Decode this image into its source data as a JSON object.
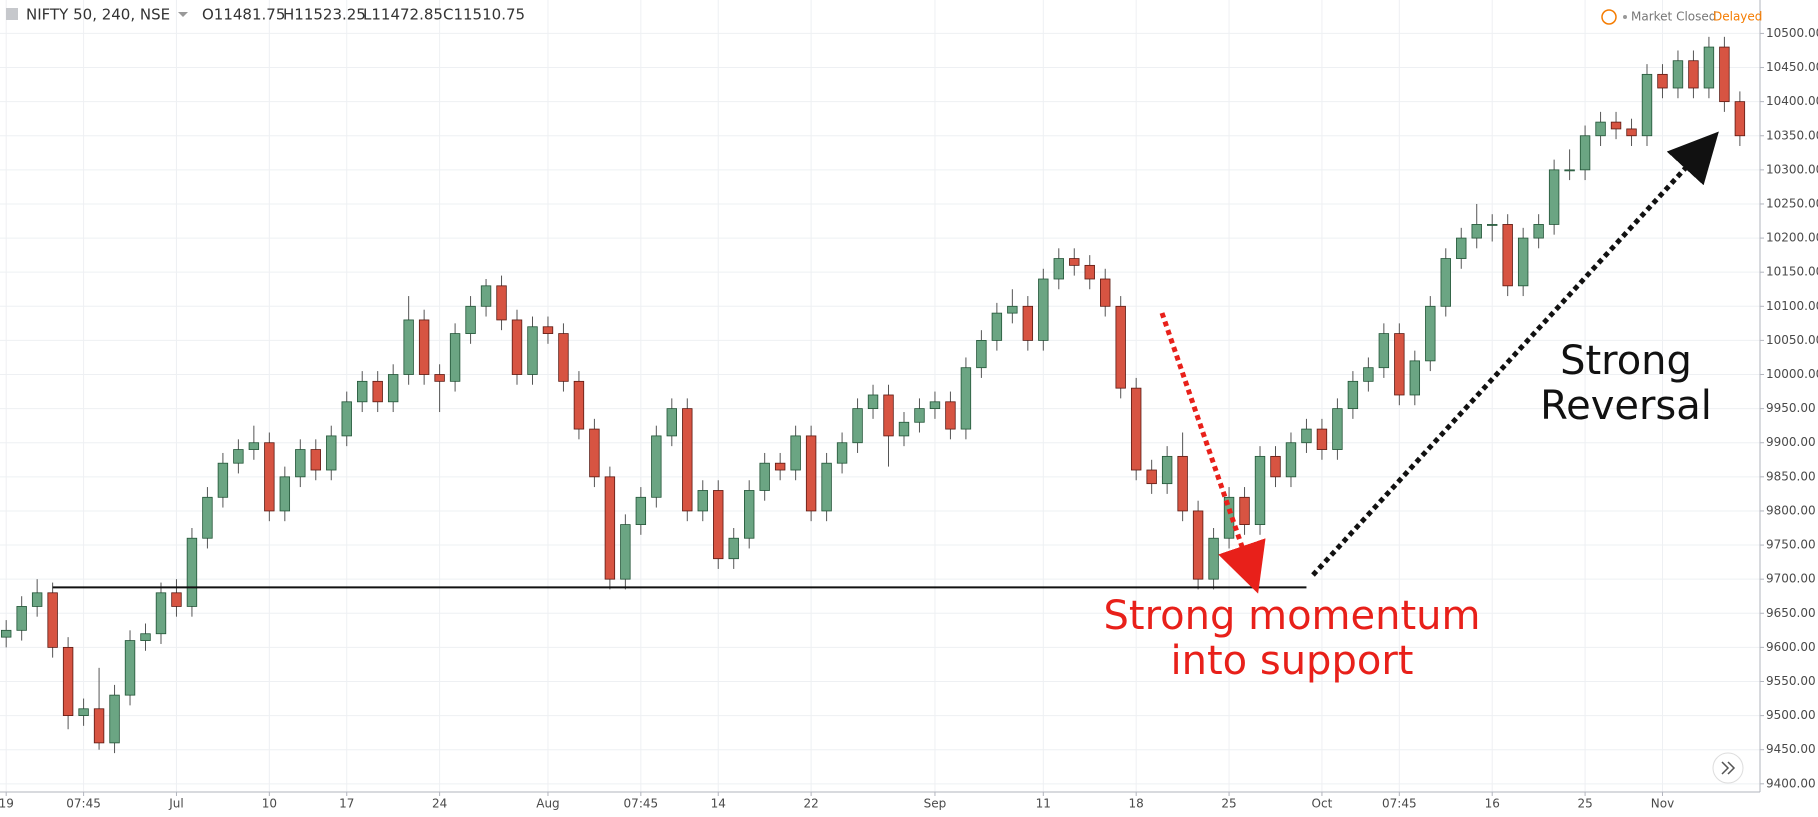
{
  "header": {
    "symbol": "NIFTY 50, 240, NSE",
    "ohlc": [
      "O11481.75",
      "H11523.25",
      "L11472.85",
      "C11510.75"
    ],
    "status": "Market Closed",
    "feed": "Delayed"
  },
  "chart_data": {
    "type": "candlestick",
    "open": [
      9615,
      9625,
      9660,
      9680,
      9600,
      9500,
      9510,
      9460,
      9530,
      9610,
      9620,
      9680,
      9660,
      9760,
      9820,
      9870,
      9890,
      9900,
      9800,
      9850,
      9890,
      9860,
      9910,
      9960,
      9990,
      9960,
      10000,
      10080,
      10000,
      9990,
      10060,
      10100,
      10130,
      10080,
      10000,
      10070,
      10060,
      9990,
      9920,
      9850,
      9700,
      9780,
      9820,
      9910,
      9950,
      9800,
      9830,
      9730,
      9760,
      9830,
      9870,
      9860,
      9910,
      9800,
      9870,
      9900,
      9950,
      9970,
      9910,
      9930,
      9950,
      9960,
      9920,
      10010,
      10050,
      10090,
      10100,
      10050,
      10140,
      10170,
      10160,
      10140,
      10100,
      9980,
      9860,
      9840,
      9880,
      9800,
      9700,
      9760,
      9820,
      9780,
      9880,
      9850,
      9900,
      9920,
      9890,
      9950,
      9990,
      10010,
      10060,
      9970,
      10020,
      10100,
      10170,
      10200,
      10220,
      10220,
      10130,
      10200,
      10220,
      10300,
      10300,
      10350,
      10370,
      10360,
      10350,
      10440,
      10420,
      10460,
      10420,
      10480,
      10400
    ],
    "high": [
      9640,
      9675,
      9700,
      9695,
      9615,
      9525,
      9570,
      9545,
      9625,
      9635,
      9695,
      9700,
      9775,
      9835,
      9885,
      9905,
      9925,
      9915,
      9865,
      9905,
      9905,
      9925,
      9975,
      10005,
      10005,
      10015,
      10115,
      10095,
      10015,
      10075,
      10115,
      10140,
      10145,
      10095,
      10085,
      10085,
      10075,
      10005,
      9935,
      9865,
      9795,
      9835,
      9925,
      9965,
      9965,
      9845,
      9845,
      9775,
      9845,
      9885,
      9885,
      9925,
      9925,
      9885,
      9915,
      9965,
      9985,
      9985,
      9945,
      9965,
      9975,
      9975,
      10025,
      10065,
      10105,
      10125,
      10115,
      10155,
      10185,
      10185,
      10175,
      10155,
      10115,
      9995,
      9875,
      9895,
      9915,
      9815,
      9775,
      9835,
      9835,
      9895,
      9895,
      9915,
      9935,
      9935,
      9965,
      10005,
      10025,
      10075,
      10075,
      10035,
      10115,
      10185,
      10215,
      10250,
      10235,
      10235,
      10215,
      10235,
      10315,
      10330,
      10365,
      10385,
      10385,
      10375,
      10455,
      10455,
      10475,
      10475,
      10495,
      10495,
      10415
    ],
    "low": [
      9600,
      9610,
      9645,
      9585,
      9480,
      9485,
      9450,
      9445,
      9515,
      9595,
      9605,
      9645,
      9645,
      9745,
      9805,
      9855,
      9875,
      9785,
      9785,
      9835,
      9845,
      9845,
      9895,
      9945,
      9945,
      9945,
      9985,
      9985,
      9945,
      9975,
      10045,
      10085,
      10065,
      9985,
      9985,
      10045,
      9975,
      9905,
      9835,
      9685,
      9685,
      9765,
      9805,
      9895,
      9785,
      9785,
      9715,
      9715,
      9745,
      9815,
      9845,
      9845,
      9785,
      9785,
      9855,
      9885,
      9935,
      9865,
      9895,
      9915,
      9935,
      9905,
      9905,
      9995,
      10035,
      10075,
      10035,
      10035,
      10125,
      10145,
      10125,
      10085,
      9965,
      9845,
      9825,
      9825,
      9785,
      9685,
      9685,
      9745,
      9765,
      9765,
      9835,
      9835,
      9885,
      9875,
      9875,
      9935,
      9975,
      9995,
      9955,
      9955,
      10005,
      10085,
      10155,
      10185,
      10195,
      10115,
      10115,
      10185,
      10205,
      10285,
      10285,
      10335,
      10345,
      10335,
      10335,
      10405,
      10405,
      10405,
      10405,
      10385,
      10335
    ],
    "close": [
      9625,
      9660,
      9680,
      9600,
      9500,
      9510,
      9460,
      9530,
      9610,
      9620,
      9680,
      9660,
      9760,
      9820,
      9870,
      9890,
      9900,
      9800,
      9850,
      9890,
      9860,
      9910,
      9960,
      9990,
      9960,
      10000,
      10080,
      10000,
      9990,
      10060,
      10100,
      10130,
      10080,
      10000,
      10070,
      10060,
      9990,
      9920,
      9850,
      9700,
      9780,
      9820,
      9910,
      9950,
      9800,
      9830,
      9730,
      9760,
      9830,
      9870,
      9860,
      9910,
      9800,
      9870,
      9900,
      9950,
      9970,
      9910,
      9930,
      9950,
      9960,
      9920,
      10010,
      10050,
      10090,
      10100,
      10050,
      10140,
      10170,
      10160,
      10140,
      10100,
      9980,
      9860,
      9840,
      9880,
      9800,
      9700,
      9760,
      9820,
      9780,
      9880,
      9850,
      9900,
      9920,
      9890,
      9950,
      9990,
      10010,
      10060,
      9970,
      10020,
      10100,
      10170,
      10200,
      10220,
      10220,
      10130,
      10200,
      10220,
      10300,
      10300,
      10350,
      10370,
      10360,
      10350,
      10440,
      10420,
      10460,
      10420,
      10480,
      10400,
      10350
    ],
    "up_color": "#6ba583",
    "down_color": "#d75442",
    "xlim": [
      -0.4,
      113.3
    ],
    "xticks": [
      {
        "value": 0,
        "label": "19"
      },
      {
        "value": 5,
        "label": "07:45"
      },
      {
        "value": 11,
        "label": "Jul"
      },
      {
        "value": 17,
        "label": "10"
      },
      {
        "value": 22,
        "label": "17"
      },
      {
        "value": 28,
        "label": "24"
      },
      {
        "value": 35,
        "label": "Aug"
      },
      {
        "value": 41,
        "label": "07:45"
      },
      {
        "value": 46,
        "label": "14"
      },
      {
        "value": 52,
        "label": "22"
      },
      {
        "value": 60,
        "label": "Sep"
      },
      {
        "value": 67,
        "label": "11"
      },
      {
        "value": 73,
        "label": "18"
      },
      {
        "value": 79,
        "label": "25"
      },
      {
        "value": 85,
        "label": "Oct"
      },
      {
        "value": 90,
        "label": "07:45"
      },
      {
        "value": 96,
        "label": "16"
      },
      {
        "value": 102,
        "label": "25"
      },
      {
        "value": 107,
        "label": "Nov"
      }
    ],
    "ylim": [
      9388,
      10549
    ],
    "yticks": [
      {
        "value": 9400,
        "label": "9400.00"
      },
      {
        "value": 9450,
        "label": "9450.00"
      },
      {
        "value": 9500,
        "label": "9500.00"
      },
      {
        "value": 9550,
        "label": "9550.00"
      },
      {
        "value": 9600,
        "label": "9600.00"
      },
      {
        "value": 9650,
        "label": "9650.00"
      },
      {
        "value": 9700,
        "label": "9700.00"
      },
      {
        "value": 9750,
        "label": "9750.00"
      },
      {
        "value": 9800,
        "label": "9800.00"
      },
      {
        "value": 9850,
        "label": "9850.00"
      },
      {
        "value": 9900,
        "label": "9900.00"
      },
      {
        "value": 9950,
        "label": "9950.00"
      },
      {
        "value": 10000,
        "label": "10000.00"
      },
      {
        "value": 10050,
        "label": "10050.00"
      },
      {
        "value": 10100,
        "label": "10100.00"
      },
      {
        "value": 10150,
        "label": "10150.00"
      },
      {
        "value": 10200,
        "label": "10200.00"
      },
      {
        "value": 10250,
        "label": "10250.00"
      },
      {
        "value": 10300,
        "label": "10300.00"
      },
      {
        "value": 10350,
        "label": "10350.00"
      },
      {
        "value": 10400,
        "label": "10400.00"
      },
      {
        "value": 10450,
        "label": "10450.00"
      },
      {
        "value": 10500,
        "label": "10500.00"
      }
    ],
    "grid": true,
    "support_line": {
      "y": 9688,
      "x": [
        3,
        84
      ]
    },
    "annotations": [
      {
        "lines": [
          "Strong momentum",
          "into support"
        ],
        "color": "#e8201a"
      },
      {
        "lines": [
          "Strong",
          "Reversal"
        ],
        "color": "#111111"
      }
    ]
  }
}
